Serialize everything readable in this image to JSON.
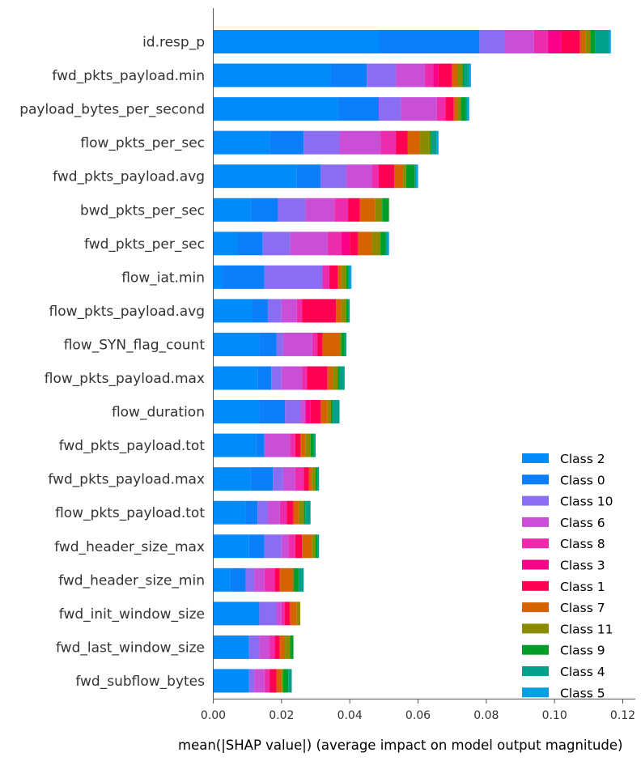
{
  "chart_data": {
    "type": "bar",
    "orientation": "horizontal",
    "stacked": true,
    "xlabel": "mean(|SHAP value|) (average impact on model output magnitude)",
    "ylabel": "",
    "xlim": [
      0.0,
      0.12
    ],
    "xticks": [
      "0.00",
      "0.02",
      "0.04",
      "0.06",
      "0.08",
      "0.10",
      "0.12"
    ],
    "grid": false,
    "legend_position": "lower-right",
    "categories": [
      "id.resp_p",
      "fwd_pkts_payload.min",
      "payload_bytes_per_second",
      "flow_pkts_per_sec",
      "fwd_pkts_payload.avg",
      "bwd_pkts_per_sec",
      "fwd_pkts_per_sec",
      "flow_iat.min",
      "flow_pkts_payload.avg",
      "flow_SYN_flag_count",
      "flow_pkts_payload.max",
      "flow_duration",
      "fwd_pkts_payload.tot",
      "fwd_pkts_payload.max",
      "flow_pkts_payload.tot",
      "fwd_header_size_max",
      "fwd_header_size_min",
      "fwd_init_window_size",
      "fwd_last_window_size",
      "fwd_subflow_bytes"
    ],
    "series": [
      {
        "name": "Class 2",
        "color": "#008bfb",
        "values": [
          0.0485,
          0.0345,
          0.0365,
          0.0165,
          0.0245,
          0.011,
          0.007,
          0.0025,
          0.0115,
          0.0135,
          0.013,
          0.0135,
          0.0125,
          0.011,
          0.0095,
          0.0105,
          0.005,
          0.0135,
          0.0105,
          0.0105
        ]
      },
      {
        "name": "Class 0",
        "color": "#0b7ffa",
        "values": [
          0.0295,
          0.0105,
          0.012,
          0.01,
          0.007,
          0.008,
          0.0075,
          0.0125,
          0.0045,
          0.005,
          0.004,
          0.0075,
          0.0025,
          0.0065,
          0.0035,
          0.0045,
          0.0045,
          0.0,
          0.0,
          0.0
        ]
      },
      {
        "name": "Class 10",
        "color": "#8a6df3",
        "values": [
          0.0075,
          0.0085,
          0.0065,
          0.0105,
          0.0075,
          0.008,
          0.008,
          0.017,
          0.004,
          0.002,
          0.003,
          0.0045,
          0.0,
          0.003,
          0.003,
          0.005,
          0.0025,
          0.005,
          0.003,
          0.0015
        ]
      },
      {
        "name": "Class 6",
        "color": "#c84fd6",
        "values": [
          0.0085,
          0.0085,
          0.0105,
          0.012,
          0.0075,
          0.0085,
          0.011,
          0.0,
          0.0045,
          0.0085,
          0.006,
          0.0015,
          0.0075,
          0.0035,
          0.0035,
          0.002,
          0.003,
          0.0015,
          0.003,
          0.003
        ]
      },
      {
        "name": "Class 8",
        "color": "#ec2bad",
        "values": [
          0.004,
          0.0025,
          0.0025,
          0.0045,
          0.002,
          0.004,
          0.004,
          0.002,
          0.0015,
          0.0015,
          0.0015,
          0.0,
          0.0015,
          0.0025,
          0.002,
          0.002,
          0.003,
          0.001,
          0.0015,
          0.0015
        ]
      },
      {
        "name": "Class 3",
        "color": "#fb0088",
        "values": [
          0.004,
          0.0015,
          0.0,
          0.0,
          0.0,
          0.0,
          0.0025,
          0.0,
          0.0,
          0.0,
          0.0,
          0.0015,
          0.0,
          0.0,
          0.0,
          0.0,
          0.0,
          0.0,
          0.0,
          0.0
        ]
      },
      {
        "name": "Class 1",
        "color": "#ff0052",
        "values": [
          0.0055,
          0.004,
          0.0025,
          0.0035,
          0.0045,
          0.0035,
          0.0025,
          0.0025,
          0.01,
          0.0015,
          0.006,
          0.003,
          0.0015,
          0.0015,
          0.002,
          0.002,
          0.0015,
          0.0015,
          0.0015,
          0.002
        ]
      },
      {
        "name": "Class 7",
        "color": "#d56400",
        "values": [
          0.0015,
          0.0015,
          0.001,
          0.0035,
          0.0025,
          0.0045,
          0.004,
          0.001,
          0.0015,
          0.005,
          0.0015,
          0.002,
          0.0015,
          0.001,
          0.0015,
          0.003,
          0.004,
          0.002,
          0.0015,
          0.0015
        ]
      },
      {
        "name": "Class 11",
        "color": "#8a8b00",
        "values": [
          0.0015,
          0.0015,
          0.001,
          0.003,
          0.001,
          0.002,
          0.0025,
          0.0015,
          0.0015,
          0.0005,
          0.0015,
          0.001,
          0.0015,
          0.001,
          0.0015,
          0.001,
          0.0,
          0.001,
          0.0015,
          0.0005
        ]
      },
      {
        "name": "Class 9",
        "color": "#009d2a",
        "values": [
          0.0015,
          0.0005,
          0.0015,
          0.0005,
          0.0025,
          0.002,
          0.0015,
          0.0005,
          0.0005,
          0.001,
          0.0005,
          0.0005,
          0.001,
          0.0005,
          0.0005,
          0.0005,
          0.0015,
          0.0,
          0.001,
          0.0015
        ]
      },
      {
        "name": "Class 4",
        "color": "#00a08b",
        "values": [
          0.004,
          0.0015,
          0.0005,
          0.0015,
          0.0005,
          0.0,
          0.0005,
          0.0005,
          0.0005,
          0.0005,
          0.0015,
          0.002,
          0.0005,
          0.0005,
          0.0015,
          0.0005,
          0.0015,
          0.0,
          0.0,
          0.001
        ]
      },
      {
        "name": "Class 5",
        "color": "#009fe5",
        "values": [
          0.0005,
          0.0005,
          0.0005,
          0.0005,
          0.0005,
          0.0,
          0.0005,
          0.0005,
          0.0,
          0.0,
          0.0,
          0.0,
          0.0,
          0.0,
          0.0,
          0.0,
          0.0,
          0.0,
          0.0,
          0.0
        ]
      }
    ]
  }
}
